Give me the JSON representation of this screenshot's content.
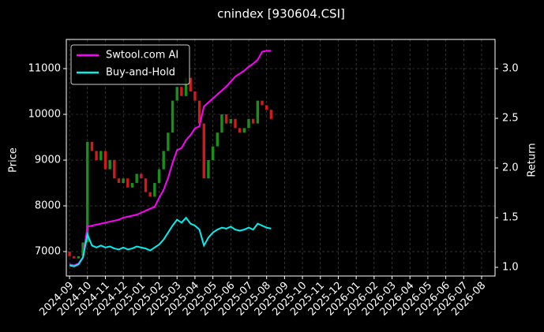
{
  "chart_data": {
    "type": "candlestick",
    "title": "cnindex [930604.CSI]",
    "y_label": "Price",
    "y2_label": "Return",
    "x": [
      0,
      0.25,
      0.5,
      0.75,
      1,
      1.25,
      1.5,
      1.75,
      2,
      2.25,
      2.5,
      2.75,
      3,
      3.25,
      3.5,
      3.75,
      4,
      4.25,
      4.5,
      4.75,
      5,
      5.25,
      5.5,
      5.75,
      6,
      6.25,
      6.5,
      6.75,
      7,
      7.25,
      7.5,
      7.75,
      8,
      8.25,
      8.5,
      8.75,
      9,
      9.25,
      9.5,
      9.75,
      10,
      10.25,
      10.5,
      10.75,
      11,
      11.25
    ],
    "open": [
      7000,
      6900,
      6850,
      6900,
      7200,
      9400,
      9200,
      9000,
      9200,
      8800,
      9000,
      8600,
      8500,
      8600,
      8400,
      8500,
      8700,
      8600,
      8300,
      8200,
      8500,
      8800,
      9200,
      9600,
      10300,
      10600,
      10400,
      10800,
      10500,
      10300,
      9800,
      8600,
      9000,
      9300,
      9600,
      10000,
      9800,
      9900,
      9700,
      9600,
      9700,
      9900,
      9800,
      10300,
      10200,
      10100
    ],
    "close": [
      6900,
      6850,
      6900,
      7200,
      9400,
      9200,
      9000,
      9200,
      8800,
      9000,
      8600,
      8500,
      8600,
      8400,
      8500,
      8700,
      8600,
      8300,
      8200,
      8500,
      8800,
      9200,
      9600,
      10300,
      10600,
      10400,
      10800,
      10500,
      10300,
      9800,
      8600,
      9000,
      9300,
      9600,
      10000,
      9800,
      9900,
      9700,
      9600,
      9700,
      9900,
      9800,
      10300,
      10200,
      10100,
      9900
    ],
    "up_color": "#1a8f1a",
    "down_color": "#d11a1a",
    "series": [
      {
        "name": "Swtool.com AI",
        "color": "#ff00ff",
        "axis": "y2",
        "values": [
          1.03,
          1.02,
          1.04,
          1.1,
          1.41,
          1.42,
          1.43,
          1.44,
          1.45,
          1.46,
          1.47,
          1.48,
          1.5,
          1.51,
          1.52,
          1.53,
          1.55,
          1.57,
          1.59,
          1.61,
          1.7,
          1.78,
          1.9,
          2.05,
          2.18,
          2.2,
          2.28,
          2.33,
          2.4,
          2.42,
          2.62,
          2.66,
          2.7,
          2.74,
          2.78,
          2.82,
          2.87,
          2.92,
          2.95,
          2.98,
          3.02,
          3.05,
          3.09,
          3.17,
          3.18,
          3.18
        ]
      },
      {
        "name": "Buy-and-Hold",
        "color": "#00f0f0",
        "axis": "y2",
        "values": [
          1.02,
          1.01,
          1.03,
          1.1,
          1.33,
          1.22,
          1.2,
          1.22,
          1.2,
          1.21,
          1.19,
          1.18,
          1.2,
          1.18,
          1.19,
          1.21,
          1.2,
          1.19,
          1.17,
          1.2,
          1.23,
          1.28,
          1.35,
          1.42,
          1.48,
          1.45,
          1.5,
          1.44,
          1.42,
          1.38,
          1.22,
          1.3,
          1.35,
          1.38,
          1.4,
          1.39,
          1.41,
          1.38,
          1.37,
          1.38,
          1.4,
          1.38,
          1.44,
          1.42,
          1.4,
          1.39
        ]
      }
    ],
    "xlim": [
      -0.18,
      23.75
    ],
    "xticks": [
      {
        "value": 0,
        "label": "2024-09"
      },
      {
        "value": 1,
        "label": "2024-10"
      },
      {
        "value": 2,
        "label": "2024-11"
      },
      {
        "value": 3,
        "label": "2024-12"
      },
      {
        "value": 4,
        "label": "2025-01"
      },
      {
        "value": 5,
        "label": "2025-02"
      },
      {
        "value": 6,
        "label": "2025-03"
      },
      {
        "value": 7,
        "label": "2025-04"
      },
      {
        "value": 8,
        "label": "2025-05"
      },
      {
        "value": 9,
        "label": "2025-06"
      },
      {
        "value": 10,
        "label": "2025-07"
      },
      {
        "value": 11,
        "label": "2025-08"
      },
      {
        "value": 12,
        "label": "2025-09"
      },
      {
        "value": 13,
        "label": "2025-10"
      },
      {
        "value": 14,
        "label": "2025-11"
      },
      {
        "value": 15,
        "label": "2025-12"
      },
      {
        "value": 16,
        "label": "2026-01"
      },
      {
        "value": 17,
        "label": "2026-02"
      },
      {
        "value": 18,
        "label": "2026-03"
      },
      {
        "value": 19,
        "label": "2026-04"
      },
      {
        "value": 20,
        "label": "2026-05"
      },
      {
        "value": 21,
        "label": "2026-06"
      },
      {
        "value": 22,
        "label": "2026-07"
      },
      {
        "value": 23,
        "label": "2026-08"
      }
    ],
    "ylim": [
      6466,
      11638
    ],
    "yticks": [
      7000,
      8000,
      9000,
      10000,
      11000
    ],
    "y2lim": [
      0.913,
      3.294
    ],
    "y2ticks": [
      {
        "value": 1,
        "label": "1.0"
      },
      1.5,
      {
        "value": 2,
        "label": "2.0"
      },
      2.5,
      {
        "value": 3,
        "label": "3.0"
      }
    ],
    "grid": true,
    "legend": "upper left"
  }
}
